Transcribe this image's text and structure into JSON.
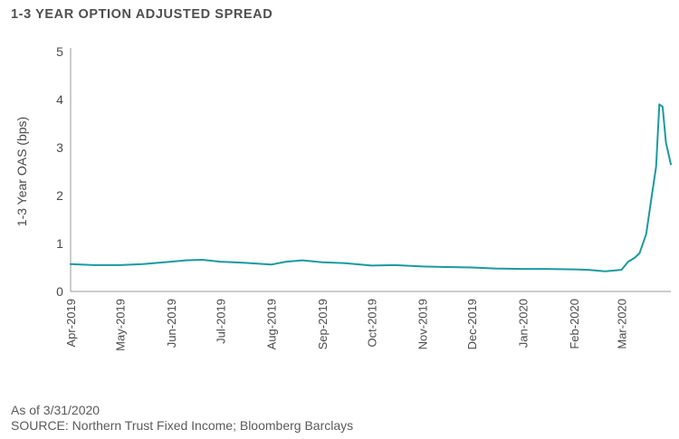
{
  "chart_data": {
    "type": "line",
    "title": "1-3 YEAR OPTION ADJUSTED SPREAD",
    "ylabel": "1-3 Year OAS (bps)",
    "xlabel": "",
    "ylim": [
      0,
      5
    ],
    "yticks": [
      "0",
      "1",
      "2",
      "3",
      "4",
      "5"
    ],
    "xtick_labels": [
      "Apr-2019",
      "May-2019",
      "Jun-2019",
      "Jul-2019",
      "Aug-2019",
      "Sep-2019",
      "Oct-2019",
      "Nov-2019",
      "Dec-2019",
      "Jan-2020",
      "Feb-2020",
      "Mar-2020"
    ],
    "grid": false,
    "line_color": "#1a9aa0",
    "series": [
      {
        "x": [
          "2019-04-01",
          "2019-04-15",
          "2019-05-01",
          "2019-05-15",
          "2019-06-01",
          "2019-06-10",
          "2019-06-20",
          "2019-07-01",
          "2019-07-15",
          "2019-08-01",
          "2019-08-10",
          "2019-08-20",
          "2019-09-01",
          "2019-09-15",
          "2019-10-01",
          "2019-10-15",
          "2019-11-01",
          "2019-11-15",
          "2019-12-01",
          "2019-12-15",
          "2020-01-01",
          "2020-01-15",
          "2020-02-01",
          "2020-02-10",
          "2020-02-20",
          "2020-03-01",
          "2020-03-05",
          "2020-03-09",
          "2020-03-12",
          "2020-03-16",
          "2020-03-19",
          "2020-03-22",
          "2020-03-24",
          "2020-03-26",
          "2020-03-28",
          "2020-03-31"
        ],
        "y": [
          0.57,
          0.55,
          0.55,
          0.57,
          0.62,
          0.65,
          0.66,
          0.62,
          0.6,
          0.56,
          0.62,
          0.65,
          0.61,
          0.59,
          0.54,
          0.55,
          0.52,
          0.51,
          0.5,
          0.48,
          0.47,
          0.47,
          0.46,
          0.45,
          0.42,
          0.45,
          0.62,
          0.7,
          0.8,
          1.2,
          1.9,
          2.6,
          3.9,
          3.85,
          3.1,
          2.65
        ]
      }
    ]
  },
  "notes": {
    "as_of": "As of 3/31/2020",
    "source": "SOURCE: Northern Trust Fixed Income; Bloomberg Barclays"
  }
}
